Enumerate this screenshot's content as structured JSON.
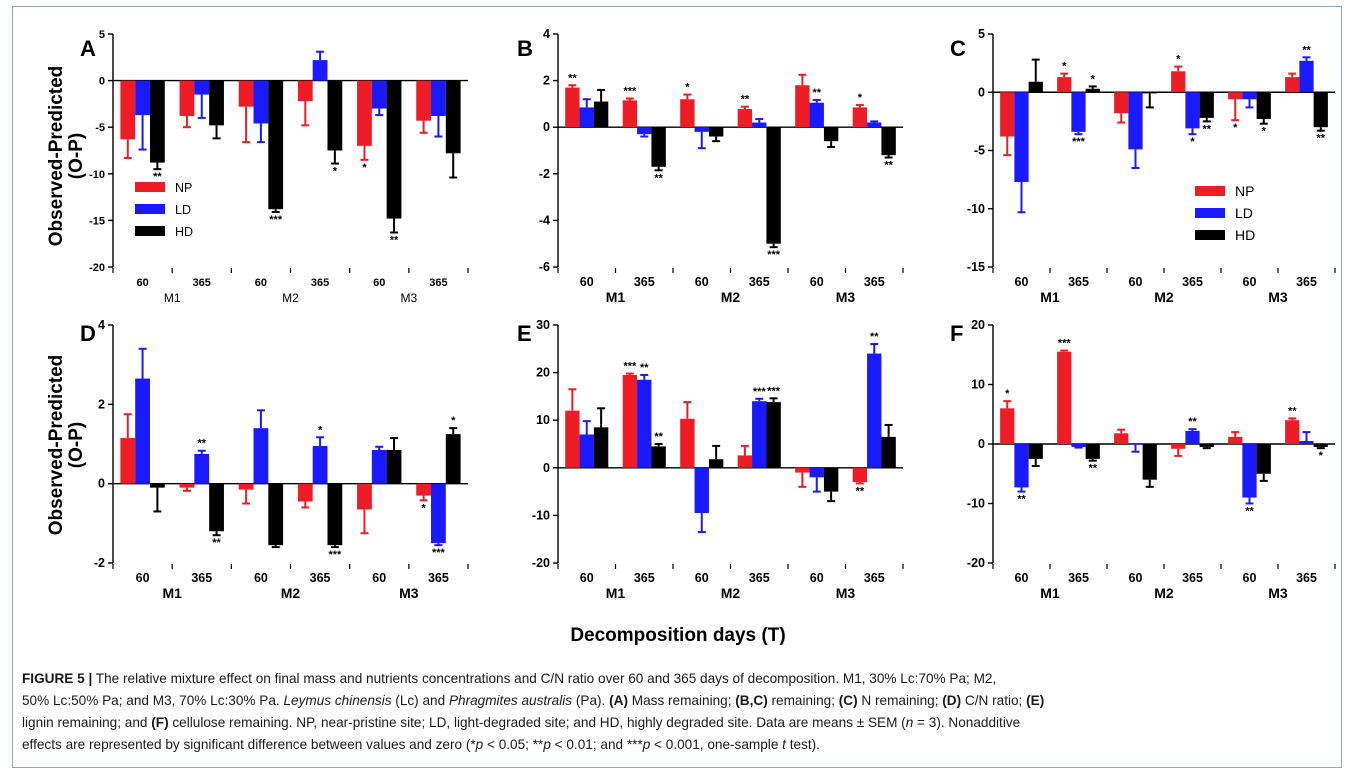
{
  "figure": {
    "shared_ylabel": [
      "Observed-Predicted",
      "(O-P)"
    ],
    "shared_xlabel": "Decomposition days (T)",
    "legend": [
      {
        "name": "NP",
        "color": "#ee1c24"
      },
      {
        "name": "LD",
        "color": "#1a1aff"
      },
      {
        "name": "HD",
        "color": "#000000"
      }
    ]
  },
  "chart_data": [
    {
      "panel": "A",
      "type": "bar",
      "ylim": [
        -20,
        5
      ],
      "yticks": [
        5,
        0,
        -5,
        -10,
        -15,
        -20
      ],
      "legend": "middle-left",
      "categories": [
        "60",
        "365",
        "60",
        "365",
        "60",
        "365"
      ],
      "groups": [
        "M1",
        "M2",
        "M3"
      ],
      "series": [
        {
          "name": "NP",
          "color": "#ee1c24",
          "values": [
            -6.3,
            -3.8,
            -2.8,
            -2.2,
            -7.0,
            -4.3
          ],
          "err": [
            2.0,
            1.2,
            3.8,
            2.6,
            1.5,
            1.3
          ],
          "sig": [
            "",
            "",
            "",
            "",
            "*",
            ""
          ]
        },
        {
          "name": "LD",
          "color": "#1a1aff",
          "values": [
            -3.7,
            -1.5,
            -4.6,
            2.2,
            -3.0,
            -3.8
          ],
          "err": [
            3.7,
            2.5,
            2.0,
            0.9,
            0.7,
            2.2
          ],
          "sig": [
            "",
            "",
            "",
            "",
            "",
            ""
          ]
        },
        {
          "name": "HD",
          "color": "#000000",
          "values": [
            -8.8,
            -4.8,
            -13.8,
            -7.5,
            -14.8,
            -7.8
          ],
          "err": [
            0.7,
            1.4,
            0.3,
            1.4,
            1.5,
            2.6
          ],
          "sig": [
            "**",
            "",
            "***",
            "*",
            "**",
            ""
          ]
        }
      ]
    },
    {
      "panel": "B",
      "type": "bar",
      "ylim": [
        -6,
        4
      ],
      "yticks": [
        4,
        2,
        0,
        -2,
        -4,
        -6
      ],
      "categories": [
        "60",
        "365",
        "60",
        "365",
        "60",
        "365"
      ],
      "groups": [
        "M1",
        "M2",
        "M3"
      ],
      "series": [
        {
          "name": "NP",
          "color": "#ee1c24",
          "values": [
            1.7,
            1.15,
            1.2,
            0.78,
            1.8,
            0.85
          ],
          "err": [
            0.1,
            0.08,
            0.2,
            0.1,
            0.45,
            0.1
          ],
          "sig": [
            "**",
            "***",
            "*",
            "**",
            "",
            "*"
          ]
        },
        {
          "name": "LD",
          "color": "#1a1aff",
          "values": [
            0.85,
            -0.3,
            -0.2,
            0.2,
            1.05,
            0.2
          ],
          "err": [
            0.35,
            0.1,
            0.7,
            0.15,
            0.12,
            0.05
          ],
          "sig": [
            "",
            "",
            "",
            "",
            "**",
            ""
          ]
        },
        {
          "name": "HD",
          "color": "#000000",
          "values": [
            1.1,
            -1.7,
            -0.4,
            -5.0,
            -0.6,
            -1.2
          ],
          "err": [
            0.5,
            0.15,
            0.2,
            0.15,
            0.25,
            0.1
          ],
          "sig": [
            "",
            "**",
            "",
            "***",
            "",
            "**"
          ]
        }
      ]
    },
    {
      "panel": "C",
      "type": "bar",
      "ylim": [
        -15,
        5
      ],
      "yticks": [
        5,
        0,
        -5,
        -10,
        -15
      ],
      "legend": "middle-right",
      "categories": [
        "60",
        "365",
        "60",
        "365",
        "60",
        "365"
      ],
      "groups": [
        "M1",
        "M2",
        "M3"
      ],
      "series": [
        {
          "name": "NP",
          "color": "#ee1c24",
          "values": [
            -3.8,
            1.3,
            -1.8,
            1.8,
            -0.6,
            1.3
          ],
          "err": [
            1.6,
            0.3,
            0.8,
            0.4,
            1.8,
            0.3
          ],
          "sig": [
            "",
            "*",
            "",
            "*",
            "*",
            ""
          ]
        },
        {
          "name": "LD",
          "color": "#1a1aff",
          "values": [
            -7.7,
            -3.4,
            -4.9,
            -3.1,
            -0.6,
            2.7
          ],
          "err": [
            2.6,
            0.2,
            1.6,
            0.5,
            0.7,
            0.3
          ],
          "sig": [
            "",
            "***",
            "",
            "*",
            "",
            "**"
          ]
        },
        {
          "name": "HD",
          "color": "#000000",
          "values": [
            0.9,
            0.3,
            -0.1,
            -2.2,
            -2.3,
            -3.0
          ],
          "err": [
            1.9,
            0.2,
            1.2,
            0.3,
            0.4,
            0.3
          ],
          "sig": [
            "",
            "*",
            "",
            "**",
            "*",
            "**"
          ]
        }
      ]
    },
    {
      "panel": "D",
      "type": "bar",
      "ylim": [
        -2,
        4
      ],
      "yticks": [
        4,
        2,
        0,
        -2
      ],
      "categories": [
        "60",
        "365",
        "60",
        "365",
        "60",
        "365"
      ],
      "groups": [
        "M1",
        "M2",
        "M3"
      ],
      "series": [
        {
          "name": "NP",
          "color": "#ee1c24",
          "values": [
            1.15,
            -0.1,
            -0.15,
            -0.45,
            -0.65,
            -0.3
          ],
          "err": [
            0.6,
            0.08,
            0.35,
            0.15,
            0.6,
            0.12
          ],
          "sig": [
            "",
            "",
            "",
            "",
            "",
            "*"
          ]
        },
        {
          "name": "LD",
          "color": "#1a1aff",
          "values": [
            2.65,
            0.75,
            1.4,
            0.95,
            0.85,
            -1.5
          ],
          "err": [
            0.75,
            0.08,
            0.45,
            0.22,
            0.08,
            0.05
          ],
          "sig": [
            "",
            "**",
            "",
            "*",
            "",
            "***"
          ]
        },
        {
          "name": "HD",
          "color": "#000000",
          "values": [
            -0.1,
            -1.2,
            -1.55,
            -1.55,
            0.85,
            1.25
          ],
          "err": [
            0.6,
            0.1,
            0.05,
            0.05,
            0.3,
            0.15
          ],
          "sig": [
            "",
            "**",
            "",
            "***",
            "",
            "*"
          ]
        }
      ]
    },
    {
      "panel": "E",
      "type": "bar",
      "ylim": [
        -20,
        30
      ],
      "yticks": [
        30,
        20,
        10,
        0,
        -10,
        -20
      ],
      "categories": [
        "60",
        "365",
        "60",
        "365",
        "60",
        "365"
      ],
      "groups": [
        "M1",
        "M2",
        "M3"
      ],
      "series": [
        {
          "name": "NP",
          "color": "#ee1c24",
          "values": [
            12.0,
            19.5,
            10.3,
            2.6,
            -1.0,
            -3.0
          ],
          "err": [
            4.5,
            0.3,
            3.5,
            2.0,
            3.0,
            0.3
          ],
          "sig": [
            "",
            "***",
            "",
            "",
            "",
            "**"
          ]
        },
        {
          "name": "LD",
          "color": "#1a1aff",
          "values": [
            7.0,
            18.5,
            -9.5,
            14.0,
            -2.0,
            24.0
          ],
          "err": [
            2.8,
            1.0,
            4.0,
            0.5,
            3.0,
            2.0
          ],
          "sig": [
            "",
            "**",
            "",
            "***",
            "",
            "**"
          ]
        },
        {
          "name": "HD",
          "color": "#000000",
          "values": [
            8.5,
            4.5,
            1.8,
            13.8,
            -5.0,
            6.5
          ],
          "err": [
            4.0,
            0.5,
            2.8,
            0.8,
            2.0,
            2.5
          ],
          "sig": [
            "",
            "**",
            "",
            "***",
            "",
            ""
          ]
        }
      ]
    },
    {
      "panel": "F",
      "type": "bar",
      "ylim": [
        -20,
        20
      ],
      "yticks": [
        20,
        10,
        0,
        -10,
        -20
      ],
      "categories": [
        "60",
        "365",
        "60",
        "365",
        "60",
        "365"
      ],
      "groups": [
        "M1",
        "M2",
        "M3"
      ],
      "series": [
        {
          "name": "NP",
          "color": "#ee1c24",
          "values": [
            6.0,
            15.5,
            1.8,
            -0.8,
            1.2,
            4.0
          ],
          "err": [
            1.2,
            0.2,
            0.6,
            1.2,
            0.8,
            0.3
          ],
          "sig": [
            "*",
            "***",
            "",
            "",
            "",
            "**"
          ]
        },
        {
          "name": "LD",
          "color": "#1a1aff",
          "values": [
            -7.3,
            -0.5,
            -0.1,
            2.2,
            -9.0,
            0.5
          ],
          "err": [
            0.7,
            0.1,
            1.2,
            0.3,
            1.0,
            1.5
          ],
          "sig": [
            "**",
            "",
            "",
            "**",
            "**",
            ""
          ]
        },
        {
          "name": "HD",
          "color": "#000000",
          "values": [
            -2.5,
            -2.5,
            -6.0,
            -0.5,
            -5.0,
            -0.5
          ],
          "err": [
            1.2,
            0.3,
            1.2,
            0.2,
            1.2,
            0.2
          ],
          "sig": [
            "",
            "**",
            "",
            "",
            "",
            "*"
          ]
        }
      ]
    }
  ],
  "caption": {
    "lines": [
      [
        {
          "b": "FIGURE 5 |"
        },
        {
          "t": " The relative mixture effect on final mass and nutrients concentrations and C/N ratio over 60 and 365 days of decomposition. M1, 30% Lc:70% Pa; M2,"
        }
      ],
      [
        {
          "t": "50% Lc:50% Pa; and M3, 70% Lc:30% Pa. "
        },
        {
          "i": "Leymus chinensis"
        },
        {
          "t": " (Lc) and "
        },
        {
          "i": "Phragmites australis"
        },
        {
          "t": " (Pa). "
        },
        {
          "b": "(A)"
        },
        {
          "t": " Mass remaining; "
        },
        {
          "b": "(B,C)"
        },
        {
          "t": " remaining; "
        },
        {
          "b": "(C)"
        },
        {
          "t": " N remaining; "
        },
        {
          "b": "(D)"
        },
        {
          "t": " C/N ratio; "
        },
        {
          "b": "(E)"
        }
      ],
      [
        {
          "t": "lignin remaining; and "
        },
        {
          "b": "(F)"
        },
        {
          "t": " cellulose remaining. NP, near-pristine site; LD, light-degraded site; and HD, highly degraded site. Data are means ± SEM ("
        },
        {
          "i": "n"
        },
        {
          "t": " = 3). Nonadditive"
        }
      ],
      [
        {
          "t": "effects are represented by significant difference between values and zero (*"
        },
        {
          "i": "p"
        },
        {
          "t": " < 0.05; **"
        },
        {
          "i": "p"
        },
        {
          "t": " < 0.01; and ***"
        },
        {
          "i": "p"
        },
        {
          "t": " < 0.001, one-sample "
        },
        {
          "i": "t"
        },
        {
          "t": " test)."
        }
      ]
    ]
  }
}
